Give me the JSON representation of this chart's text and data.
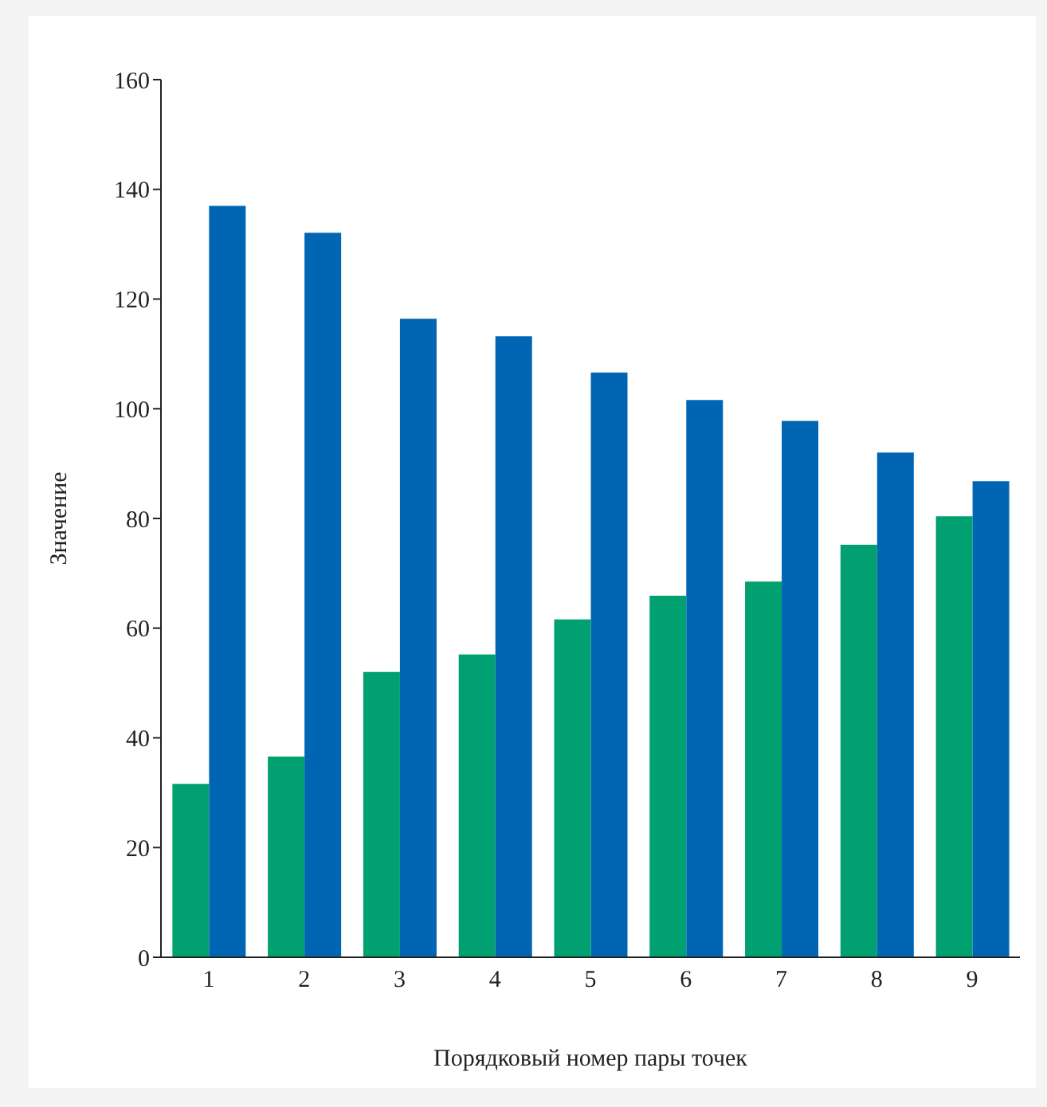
{
  "chart_data": {
    "type": "bar",
    "xlabel": "Порядковый номер пары точек",
    "ylabel": "Значение",
    "categories": [
      "1",
      "2",
      "3",
      "4",
      "5",
      "6",
      "7",
      "8",
      "9"
    ],
    "series": [
      {
        "color": "#00a070",
        "values": [
          31.6,
          36.6,
          52,
          55.2,
          61.6,
          65.9,
          68.5,
          75.2,
          80.4
        ]
      },
      {
        "color": "#0066b3",
        "values": [
          137,
          132.1,
          116.4,
          113.2,
          106.6,
          101.6,
          97.8,
          92,
          86.8
        ]
      }
    ],
    "ylim": [
      0,
      160
    ],
    "yticks": [
      0,
      20,
      40,
      60,
      80,
      100,
      120,
      140,
      160
    ],
    "grid": false,
    "legend": false
  }
}
